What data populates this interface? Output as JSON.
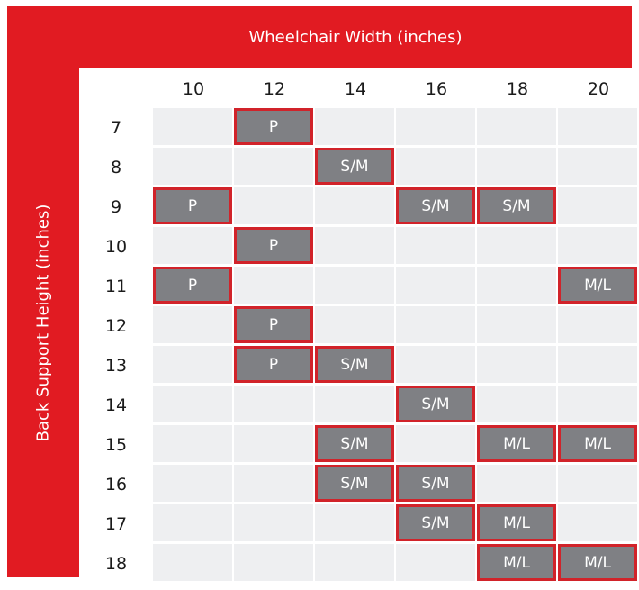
{
  "chart_data": {
    "type": "table",
    "title": "",
    "xlabel": "Wheelchair Width (inches)",
    "ylabel": "Back Support Height (inches)",
    "columns": [
      "10",
      "12",
      "14",
      "16",
      "18",
      "20"
    ],
    "rows": [
      "7",
      "8",
      "9",
      "10",
      "11",
      "12",
      "13",
      "14",
      "15",
      "16",
      "17",
      "18"
    ],
    "cells": [
      [
        "",
        "P",
        "",
        "",
        "",
        ""
      ],
      [
        "",
        "",
        "S/M",
        "",
        "",
        ""
      ],
      [
        "P",
        "",
        "",
        "S/M",
        "S/M",
        ""
      ],
      [
        "",
        "P",
        "",
        "",
        "",
        ""
      ],
      [
        "P",
        "",
        "",
        "",
        "",
        "M/L"
      ],
      [
        "",
        "P",
        "",
        "",
        "",
        ""
      ],
      [
        "",
        "P",
        "S/M",
        "",
        "",
        ""
      ],
      [
        "",
        "",
        "",
        "S/M",
        "",
        ""
      ],
      [
        "",
        "",
        "S/M",
        "",
        "M/L",
        "M/L"
      ],
      [
        "",
        "",
        "S/M",
        "S/M",
        "",
        ""
      ],
      [
        "",
        "",
        "",
        "S/M",
        "M/L",
        ""
      ],
      [
        "",
        "",
        "",
        "",
        "M/L",
        "M/L"
      ]
    ],
    "legend": [],
    "grid": true
  },
  "colors": {
    "frame": "#e11b22",
    "filled_cell": "#7f8084",
    "filled_border": "#d1232a",
    "empty_cell": "#eeeff1",
    "label_text": "#1b1b1b"
  }
}
